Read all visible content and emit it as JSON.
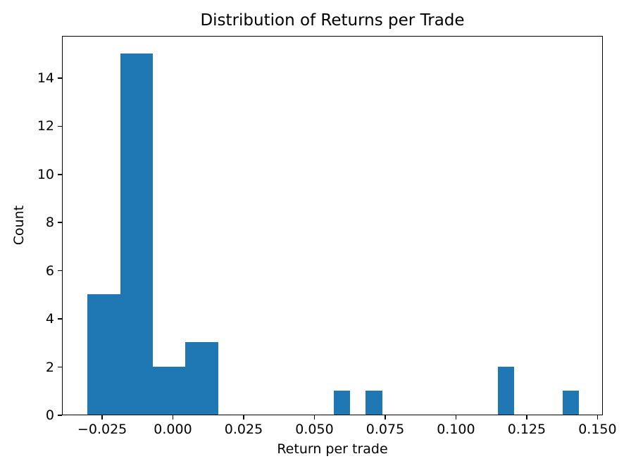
{
  "chart_data": {
    "type": "bar",
    "subtype": "histogram",
    "title": "Distribution of Returns per Trade",
    "xlabel": "Return per trade",
    "ylabel": "Count",
    "bar_color": "#1f77b4",
    "axis_color": "#000000",
    "background_color": "#ffffff",
    "grid": false,
    "legend_position": "none",
    "xlim": [
      -0.0392,
      0.1519
    ],
    "ylim": [
      0,
      15.75
    ],
    "bin_width": 0.0058,
    "x_ticks": [
      {
        "value": -0.025,
        "label": "−0.025"
      },
      {
        "value": 0.0,
        "label": "0.000"
      },
      {
        "value": 0.025,
        "label": "0.025"
      },
      {
        "value": 0.05,
        "label": "0.050"
      },
      {
        "value": 0.075,
        "label": "0.075"
      },
      {
        "value": 0.1,
        "label": "0.100"
      },
      {
        "value": 0.125,
        "label": "0.125"
      },
      {
        "value": 0.15,
        "label": "0.150"
      }
    ],
    "y_ticks": [
      {
        "value": 0,
        "label": "0"
      },
      {
        "value": 2,
        "label": "2"
      },
      {
        "value": 4,
        "label": "4"
      },
      {
        "value": 6,
        "label": "6"
      },
      {
        "value": 8,
        "label": "8"
      },
      {
        "value": 10,
        "label": "10"
      },
      {
        "value": 12,
        "label": "12"
      },
      {
        "value": 14,
        "label": "14"
      }
    ],
    "bars": [
      {
        "x0": -0.0305,
        "x1": -0.0189,
        "count": 5
      },
      {
        "x0": -0.0189,
        "x1": -0.0073,
        "count": 15
      },
      {
        "x0": -0.0073,
        "x1": 0.0042,
        "count": 2
      },
      {
        "x0": 0.0042,
        "x1": 0.0158,
        "count": 3
      },
      {
        "x0": 0.0566,
        "x1": 0.0624,
        "count": 1
      },
      {
        "x0": 0.0679,
        "x1": 0.0737,
        "count": 1
      },
      {
        "x0": 0.1145,
        "x1": 0.1202,
        "count": 2
      },
      {
        "x0": 0.1374,
        "x1": 0.1432,
        "count": 1
      }
    ]
  }
}
